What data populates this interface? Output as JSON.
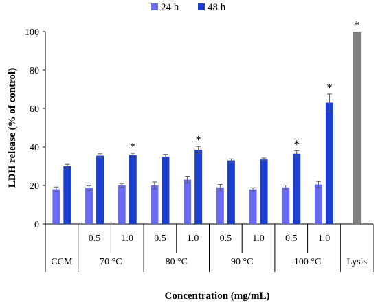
{
  "chart_data": {
    "type": "bar",
    "xlabel": "Concentration (mg/mL)",
    "ylabel": "LDH release (% of control)",
    "ylim": [
      0,
      100
    ],
    "yticks": [
      0,
      20,
      40,
      60,
      80,
      100
    ],
    "legend": {
      "position": "top",
      "entries": [
        {
          "name": "24 h",
          "color": "#6b6bf2"
        },
        {
          "name": "48 h",
          "color": "#1c3fd0"
        }
      ]
    },
    "groups": [
      {
        "label": "CCM",
        "subcategories": [
          ""
        ]
      },
      {
        "label": "70 °C",
        "subcategories": [
          "0.5",
          "1.0"
        ]
      },
      {
        "label": "80 °C",
        "subcategories": [
          "0.5",
          "1.0"
        ]
      },
      {
        "label": "90 °C",
        "subcategories": [
          "0.5",
          "1.0"
        ]
      },
      {
        "label": "100 °C",
        "subcategories": [
          "0.5",
          "1.0"
        ]
      },
      {
        "label": "Lysis",
        "subcategories": [
          ""
        ]
      }
    ],
    "series": [
      {
        "name": "24 h",
        "color": "#6b6bf2",
        "values": [
          18,
          18.7,
          20,
          20,
          23,
          19,
          18,
          19,
          20.5,
          null
        ],
        "errors": [
          1.2,
          1.2,
          1,
          1.8,
          1.8,
          1.5,
          0.8,
          1.2,
          1.6,
          null
        ],
        "significant": [
          false,
          false,
          false,
          false,
          false,
          false,
          false,
          false,
          false,
          false
        ]
      },
      {
        "name": "48 h",
        "color": "#1c3fd0",
        "values": [
          30,
          35.5,
          35.8,
          35,
          38.5,
          33,
          33.5,
          36.5,
          63,
          null
        ],
        "errors": [
          1,
          1,
          1,
          1.2,
          1.8,
          0.8,
          0.8,
          1.5,
          4.5,
          null
        ],
        "significant": [
          false,
          false,
          true,
          false,
          true,
          false,
          false,
          true,
          true,
          false
        ]
      },
      {
        "name": "Lysis",
        "color": "#808080",
        "values": [
          null,
          null,
          null,
          null,
          null,
          null,
          null,
          null,
          null,
          100
        ],
        "errors": [
          null,
          null,
          null,
          null,
          null,
          null,
          null,
          null,
          null,
          0
        ],
        "significant": [
          false,
          false,
          false,
          false,
          false,
          false,
          false,
          false,
          false,
          true
        ]
      }
    ],
    "significance_marker": "*",
    "grid": false
  }
}
